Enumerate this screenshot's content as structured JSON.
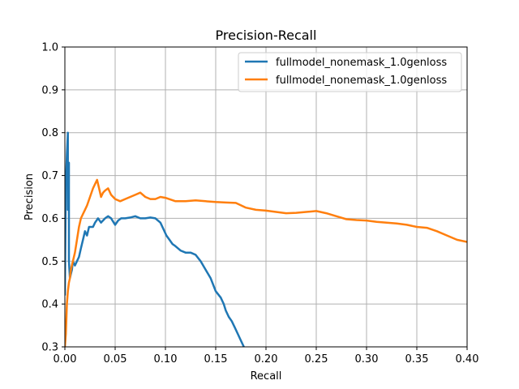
{
  "chart_data": {
    "type": "line",
    "title": "Precision-Recall",
    "xlabel": "Recall",
    "ylabel": "Precision",
    "xlim": [
      0.0,
      0.4
    ],
    "ylim": [
      0.3,
      1.0
    ],
    "xticks": [
      "0.00",
      "0.05",
      "0.10",
      "0.15",
      "0.20",
      "0.25",
      "0.30",
      "0.35",
      "0.40"
    ],
    "yticks": [
      "0.3",
      "0.4",
      "0.5",
      "0.6",
      "0.7",
      "0.8",
      "0.9",
      "1.0"
    ],
    "grid": true,
    "legend_position": "upper-right",
    "series": [
      {
        "name": "fullmodel_nonemask_1.0genloss",
        "color": "#1f77b4",
        "x": [
          0.0,
          0.001,
          0.002,
          0.003,
          0.003,
          0.004,
          0.004,
          0.005,
          0.006,
          0.007,
          0.008,
          0.01,
          0.012,
          0.014,
          0.016,
          0.018,
          0.02,
          0.022,
          0.024,
          0.026,
          0.028,
          0.03,
          0.033,
          0.036,
          0.04,
          0.043,
          0.046,
          0.05,
          0.053,
          0.056,
          0.06,
          0.065,
          0.07,
          0.075,
          0.08,
          0.085,
          0.09,
          0.095,
          0.098,
          0.101,
          0.104,
          0.107,
          0.11,
          0.115,
          0.12,
          0.125,
          0.13,
          0.135,
          0.14,
          0.145,
          0.15,
          0.155,
          0.158,
          0.16,
          0.163,
          0.166,
          0.169,
          0.172,
          0.175,
          0.178
        ],
        "y": [
          0.42,
          0.68,
          0.75,
          0.8,
          0.62,
          0.73,
          0.5,
          0.46,
          0.47,
          0.48,
          0.5,
          0.49,
          0.5,
          0.51,
          0.53,
          0.55,
          0.57,
          0.56,
          0.58,
          0.58,
          0.58,
          0.59,
          0.6,
          0.59,
          0.6,
          0.605,
          0.6,
          0.585,
          0.595,
          0.6,
          0.6,
          0.602,
          0.605,
          0.6,
          0.6,
          0.602,
          0.6,
          0.59,
          0.575,
          0.56,
          0.55,
          0.54,
          0.535,
          0.525,
          0.52,
          0.52,
          0.515,
          0.5,
          0.48,
          0.46,
          0.43,
          0.415,
          0.4,
          0.385,
          0.37,
          0.36,
          0.345,
          0.33,
          0.315,
          0.3
        ]
      },
      {
        "name": "fullmodel_nonemask_1.0genloss",
        "color": "#ff7f0e",
        "x": [
          0.0,
          0.001,
          0.002,
          0.003,
          0.004,
          0.005,
          0.006,
          0.008,
          0.01,
          0.012,
          0.014,
          0.016,
          0.018,
          0.02,
          0.022,
          0.025,
          0.028,
          0.03,
          0.032,
          0.034,
          0.036,
          0.038,
          0.04,
          0.043,
          0.046,
          0.05,
          0.055,
          0.06,
          0.065,
          0.07,
          0.075,
          0.08,
          0.085,
          0.09,
          0.095,
          0.1,
          0.11,
          0.12,
          0.13,
          0.14,
          0.15,
          0.16,
          0.17,
          0.18,
          0.19,
          0.2,
          0.21,
          0.22,
          0.23,
          0.24,
          0.25,
          0.26,
          0.27,
          0.28,
          0.29,
          0.3,
          0.31,
          0.32,
          0.33,
          0.34,
          0.35,
          0.36,
          0.37,
          0.38,
          0.39,
          0.4
        ],
        "y": [
          0.3,
          0.33,
          0.4,
          0.43,
          0.45,
          0.46,
          0.48,
          0.5,
          0.52,
          0.55,
          0.58,
          0.6,
          0.61,
          0.62,
          0.63,
          0.65,
          0.67,
          0.68,
          0.69,
          0.67,
          0.65,
          0.66,
          0.665,
          0.67,
          0.655,
          0.645,
          0.64,
          0.645,
          0.65,
          0.655,
          0.66,
          0.65,
          0.645,
          0.645,
          0.65,
          0.648,
          0.64,
          0.64,
          0.642,
          0.64,
          0.638,
          0.637,
          0.636,
          0.625,
          0.62,
          0.618,
          0.615,
          0.612,
          0.613,
          0.615,
          0.617,
          0.612,
          0.605,
          0.598,
          0.596,
          0.595,
          0.592,
          0.59,
          0.588,
          0.585,
          0.58,
          0.578,
          0.57,
          0.56,
          0.55,
          0.545
        ]
      }
    ]
  }
}
